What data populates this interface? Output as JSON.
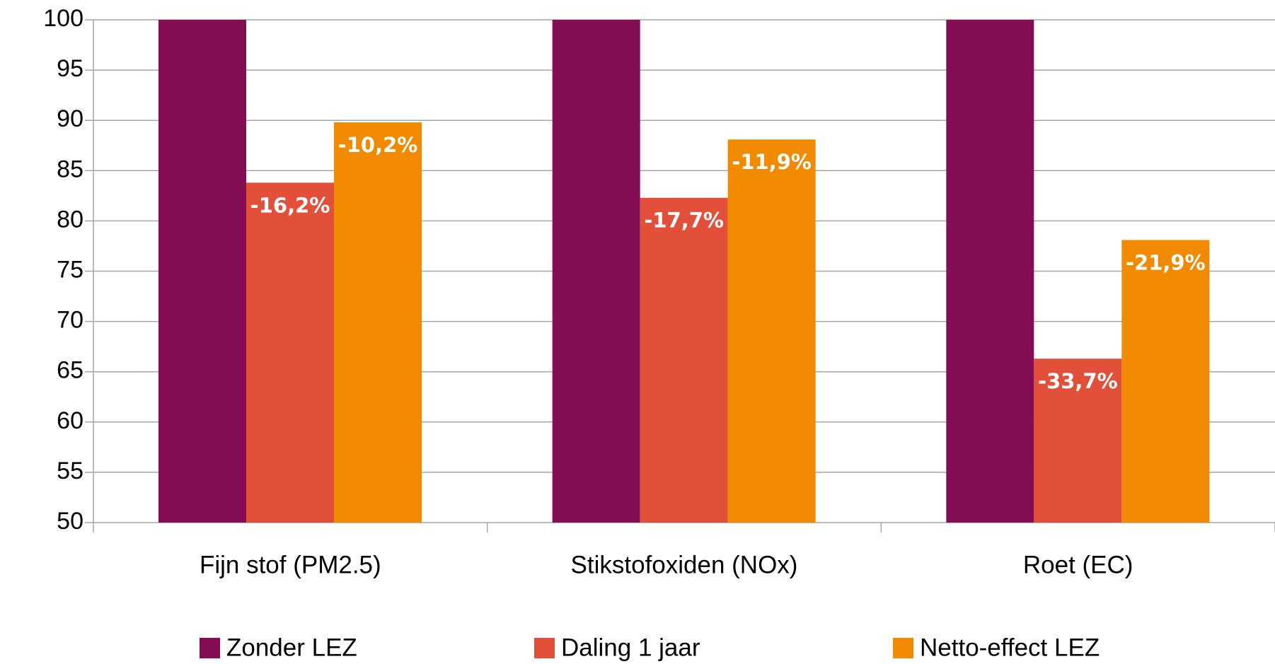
{
  "chart_data": {
    "type": "bar",
    "categories": [
      "Fijn stof (PM2.5)",
      "Stikstofoxiden (NOx)",
      "Roet (EC)"
    ],
    "series": [
      {
        "name": "Zonder LEZ",
        "color": "#850d53",
        "values": [
          100,
          100,
          100
        ]
      },
      {
        "name": "Daling 1 jaar",
        "color": "#e2503a",
        "values": [
          83.8,
          82.3,
          66.3
        ],
        "annotations": [
          "-16,2%",
          "-17,7%",
          "-33,7%"
        ]
      },
      {
        "name": "Netto-effect LEZ",
        "color": "#f28a00",
        "values": [
          89.8,
          88.1,
          78.1
        ],
        "annotations": [
          "-10,2%",
          "-11,9%",
          "-21,9%"
        ]
      }
    ],
    "ylim": [
      50,
      100
    ],
    "yticks": [
      50,
      55,
      60,
      65,
      70,
      75,
      80,
      85,
      90,
      95,
      100
    ],
    "grid": true,
    "legend": "bottom"
  }
}
